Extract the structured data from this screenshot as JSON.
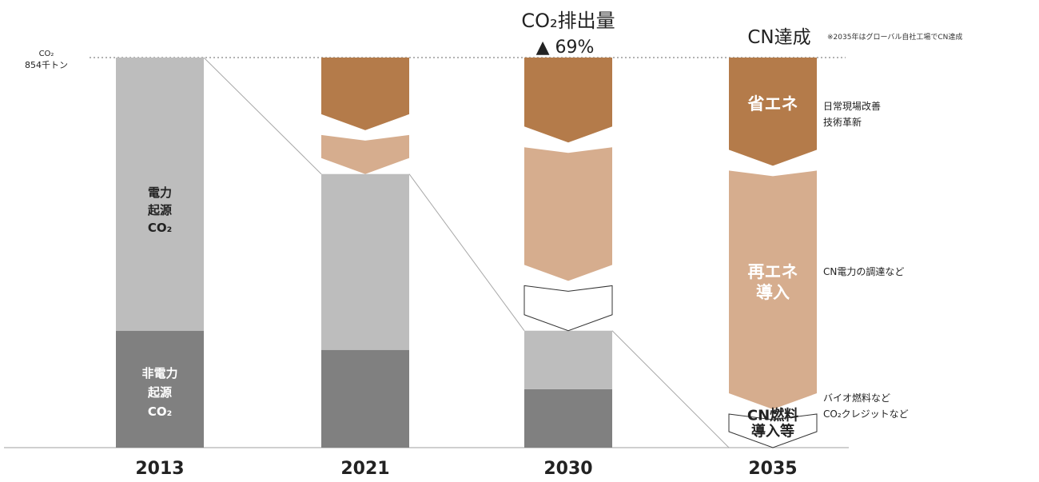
{
  "chart_data": {
    "type": "bar",
    "title": "",
    "xlabel": "",
    "ylabel": "",
    "categories": [
      "2013",
      "2021",
      "2030",
      "2035"
    ],
    "baseline": {
      "label_line1": "CO₂",
      "label_line2": "854千トン",
      "value": 854,
      "unit": "千トン"
    },
    "ylim": [
      0,
      854
    ],
    "series": [
      {
        "name": "非電力起源CO₂",
        "color": "#808080",
        "values": [
          256,
          214,
          128,
          0
        ]
      },
      {
        "name": "電力起源CO₂",
        "color": "#bdbdbd",
        "values": [
          598,
          385,
          128,
          0
        ]
      }
    ],
    "bar_labels": {
      "electric": [
        "電力",
        "起源",
        "CO₂"
      ],
      "non_electric": [
        "非電力",
        "起源",
        "CO₂"
      ]
    },
    "reductions": {
      "2021": [
        {
          "measure": "energy_saving",
          "from": 854,
          "to": 695,
          "color": "#b47b4a"
        },
        {
          "measure": "renewable",
          "from": 695,
          "to": 599,
          "color": "#d6ad8e"
        }
      ],
      "2030": [
        {
          "measure": "energy_saving",
          "from": 854,
          "to": 668,
          "color": "#b47b4a"
        },
        {
          "measure": "renewable",
          "from": 668,
          "to": 365,
          "color": "#d6ad8e"
        },
        {
          "measure": "cn_fuel",
          "from": 365,
          "to": 256,
          "color": "#ffffff"
        }
      ],
      "2035": [
        {
          "measure": "energy_saving",
          "from": 854,
          "to": 617,
          "color": "#b47b4a",
          "label": [
            "省エネ"
          ]
        },
        {
          "measure": "renewable",
          "from": 617,
          "to": 84,
          "color": "#d6ad8e",
          "label": [
            "再エネ",
            "導入"
          ]
        },
        {
          "measure": "cn_fuel",
          "from": 84,
          "to": 0,
          "color": "#ffffff",
          "label": [
            "CN燃料",
            "導入等"
          ]
        }
      ]
    },
    "annotations": {
      "co2_2030_line1": "CO₂排出量",
      "co2_2030_line2": "▲ 69%",
      "cn_2035": "CN達成",
      "cn_note": "※2035年はグローバル自社工場でCN達成",
      "energy_saving_note": [
        "日常現場改善",
        "技術革新"
      ],
      "renewable_note": "CN電力の調達など",
      "fuel_note": [
        "バイオ燃料など",
        "CO₂クレジットなど"
      ]
    }
  }
}
